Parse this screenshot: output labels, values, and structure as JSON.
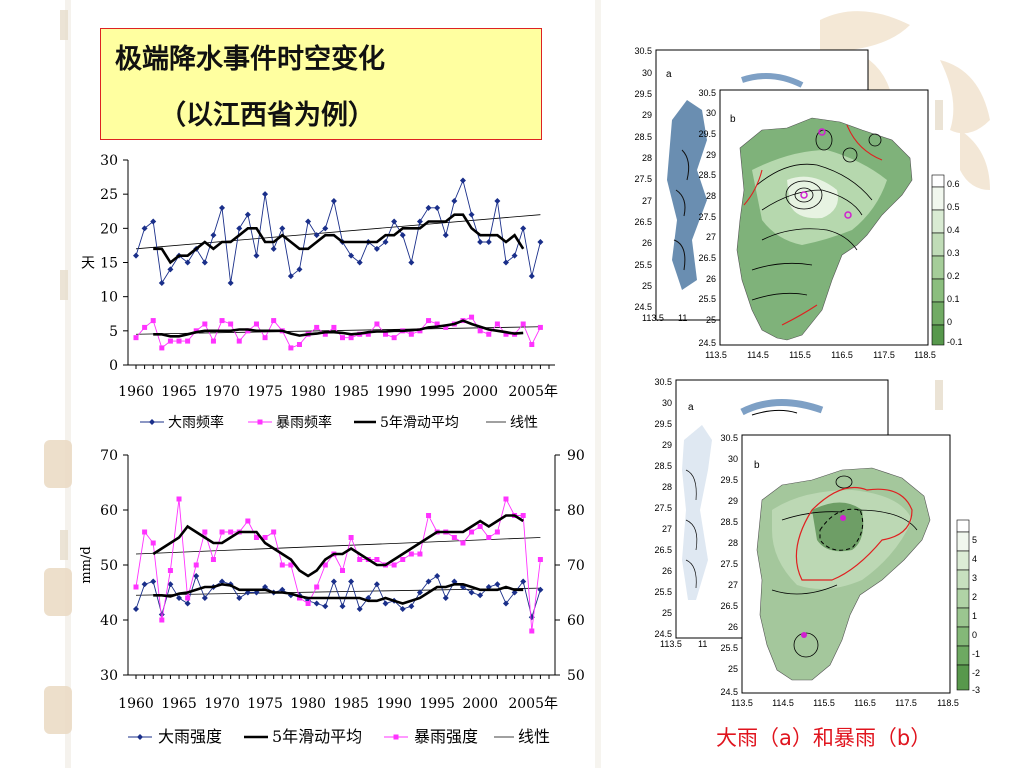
{
  "slide": {
    "title_line1": "极端降水事件时空变化",
    "title_line2": "（以江西省为例）",
    "caption": "大雨（a）和暴雨（b）"
  },
  "chart_data": [
    {
      "type": "line",
      "ylabel": "天",
      "ylim": [
        0,
        30
      ],
      "yticks": [
        "0",
        "5",
        "10",
        "15",
        "20",
        "25",
        "30"
      ],
      "xticks": [
        "1960",
        "1965",
        "1970",
        "1975",
        "1980",
        "1985",
        "1990",
        "1995",
        "2000",
        "2005年"
      ],
      "legend": [
        "大雨频率",
        "暴雨频率",
        "5年滑动平均",
        "线性"
      ],
      "x": [
        1960,
        1961,
        1962,
        1963,
        1964,
        1965,
        1966,
        1967,
        1968,
        1969,
        1970,
        1971,
        1972,
        1973,
        1974,
        1975,
        1976,
        1977,
        1978,
        1979,
        1980,
        1981,
        1982,
        1983,
        1984,
        1985,
        1986,
        1987,
        1988,
        1989,
        1990,
        1991,
        1992,
        1993,
        1994,
        1995,
        1996,
        1997,
        1998,
        1999,
        2000,
        2001,
        2002,
        2003,
        2004,
        2005,
        2006,
        2007
      ],
      "series": [
        {
          "name": "大雨频率",
          "color": "#1a2f8a",
          "marker": "diamond",
          "values": [
            16,
            20,
            21,
            12,
            14,
            16,
            15,
            17,
            15,
            19,
            23,
            12,
            20,
            22,
            16,
            25,
            17,
            20,
            13,
            14,
            21,
            19,
            20,
            24,
            18,
            16,
            15,
            18,
            17,
            18,
            21,
            19,
            15,
            21,
            23,
            23,
            19,
            24,
            27,
            22,
            18,
            18,
            24,
            15,
            16,
            20,
            13,
            18
          ]
        },
        {
          "name": "暴雨频率",
          "color": "#ff33ff",
          "marker": "square",
          "values": [
            4,
            5.5,
            6.5,
            2.5,
            3.5,
            3.5,
            3.5,
            5,
            6,
            3.5,
            6.5,
            6,
            3.5,
            5,
            6,
            4,
            6.5,
            5,
            2.5,
            3,
            4.5,
            5.5,
            4.5,
            5.5,
            4,
            4,
            4.5,
            4.5,
            6,
            4.5,
            4,
            5,
            4.5,
            5,
            6.5,
            6,
            5.5,
            6,
            6.5,
            7,
            5,
            4.5,
            6,
            4.5,
            4.5,
            6,
            3,
            5.5
          ]
        },
        {
          "name": "5年滑动平均",
          "color": "#000000",
          "values": [
            null,
            null,
            17,
            17,
            15,
            16,
            16,
            17,
            18,
            17,
            18,
            18,
            19,
            20,
            20,
            18,
            18,
            19,
            18,
            17,
            17,
            18,
            19,
            19,
            18,
            18,
            18,
            18,
            18,
            19,
            19,
            20,
            20,
            20,
            21,
            21,
            21,
            22,
            22,
            20,
            19,
            19,
            19,
            18,
            19,
            17,
            null,
            null
          ]
        },
        {
          "name": "5年滑动平均-暴雨",
          "color": "#000000",
          "values": [
            null,
            null,
            4.5,
            4.5,
            4.2,
            4.2,
            4.5,
            4.8,
            5,
            5,
            5,
            5,
            5.2,
            5.2,
            5,
            5,
            5,
            5,
            4.6,
            4.3,
            4.5,
            4.6,
            4.8,
            4.8,
            4.7,
            4.5,
            4.6,
            4.8,
            4.9,
            4.9,
            5,
            5,
            5.1,
            5.2,
            5.5,
            5.6,
            5.8,
            6,
            6.5,
            6,
            5.6,
            5.2,
            5,
            4.8,
            4.6,
            4.7,
            null,
            null
          ]
        }
      ],
      "trends": [
        [
          17,
          22
        ],
        [
          4.5,
          5.6
        ]
      ]
    },
    {
      "type": "line",
      "ylabel": "mm/d",
      "ylim": [
        30,
        70
      ],
      "y2lim": [
        50,
        90
      ],
      "yticks": [
        "30",
        "40",
        "50",
        "60",
        "70"
      ],
      "y2ticks": [
        "50",
        "60",
        "70",
        "80",
        "90"
      ],
      "xticks": [
        "1960",
        "1965",
        "1970",
        "1975",
        "1980",
        "1985",
        "1990",
        "1995",
        "2000",
        "2005年"
      ],
      "legend": [
        "大雨强度",
        "5年滑动平均",
        "暴雨强度",
        "线性"
      ],
      "x": [
        1960,
        1961,
        1962,
        1963,
        1964,
        1965,
        1966,
        1967,
        1968,
        1969,
        1970,
        1971,
        1972,
        1973,
        1974,
        1975,
        1976,
        1977,
        1978,
        1979,
        1980,
        1981,
        1982,
        1983,
        1984,
        1985,
        1986,
        1987,
        1988,
        1989,
        1990,
        1991,
        1992,
        1993,
        1994,
        1995,
        1996,
        1997,
        1998,
        1999,
        2000,
        2001,
        2002,
        2003,
        2004,
        2005,
        2006,
        2007
      ],
      "series": [
        {
          "name": "大雨强度",
          "axis": "left",
          "color": "#1a2f8a",
          "marker": "diamond",
          "values": [
            42,
            46.5,
            47,
            41,
            46.5,
            44,
            43,
            48,
            44,
            46,
            47,
            46.5,
            44,
            45,
            45,
            46,
            45,
            45.5,
            44.5,
            44.5,
            43.5,
            43,
            42.5,
            47,
            42.5,
            47,
            42,
            44,
            46.5,
            43,
            43.5,
            42,
            42.5,
            45,
            47,
            48,
            44,
            47,
            46,
            45,
            44.5,
            46,
            46.5,
            43,
            45,
            47,
            40.5,
            45.5
          ]
        },
        {
          "name": "暴雨强度",
          "axis": "right",
          "color": "#ff33ff",
          "marker": "square",
          "values": [
            66,
            76,
            74,
            60,
            69,
            82,
            64,
            70,
            76,
            71,
            76,
            76,
            76,
            78,
            75,
            75,
            76,
            70,
            70,
            64,
            63,
            66,
            70,
            72,
            69,
            75,
            71,
            71,
            71,
            70,
            70,
            71,
            72,
            72,
            79,
            76,
            76,
            75,
            74,
            76,
            77,
            75,
            76,
            82,
            79,
            79,
            58,
            71
          ]
        },
        {
          "name": "5年滑动平均-大雨",
          "axis": "left",
          "color": "#000000",
          "values": [
            null,
            null,
            44.5,
            44.5,
            44.3,
            44.8,
            45,
            45.5,
            46,
            46,
            46.5,
            46.3,
            45.5,
            45.5,
            45.5,
            45.5,
            45,
            45,
            44.8,
            44.3,
            44,
            44,
            44,
            44,
            44,
            44,
            44,
            43.5,
            43.5,
            44,
            43.5,
            43,
            43.5,
            44,
            45,
            46,
            46,
            46.5,
            46.5,
            46,
            45.5,
            45.5,
            45.5,
            46,
            45.5,
            45.5,
            null,
            null
          ]
        },
        {
          "name": "5年滑动平均-暴雨",
          "axis": "right",
          "color": "#000000",
          "values": [
            null,
            null,
            72,
            73,
            74,
            75,
            77,
            76,
            75,
            74,
            74,
            75,
            76,
            76,
            76,
            74,
            73,
            72,
            71,
            69,
            68,
            69,
            71,
            72,
            72,
            73,
            72,
            71,
            70,
            70,
            71,
            72,
            73,
            74,
            75,
            76,
            76,
            76,
            76,
            77,
            78,
            77,
            78,
            79,
            79,
            78,
            null,
            null
          ]
        }
      ],
      "trends_left": [
        44.5,
        45.8
      ],
      "trends_right": [
        72,
        75
      ]
    }
  ],
  "maps": {
    "top_a_label": "a",
    "top_b_label": "b",
    "bot_a_label": "a",
    "bot_b_label": "b",
    "y_ticks": [
      "30.5",
      "30",
      "29.5",
      "29",
      "28.5",
      "28",
      "27.5",
      "27",
      "26.5",
      "26",
      "25.5",
      "25",
      "24.5"
    ],
    "x_ticks": [
      "113.5",
      "114.5",
      "115.5",
      "116.5",
      "117.5",
      "118.5"
    ],
    "top_scale": [
      "0.6",
      "0.5",
      "0.4",
      "0.3",
      "0.2",
      "0.1",
      "0",
      "-0.1"
    ],
    "bot_scale": [
      "5",
      "4",
      "3",
      "2",
      "1",
      "0",
      "-1",
      "-2",
      "-3"
    ],
    "partial_x_tick": "113.5",
    "partial_x_tick2": "11"
  }
}
